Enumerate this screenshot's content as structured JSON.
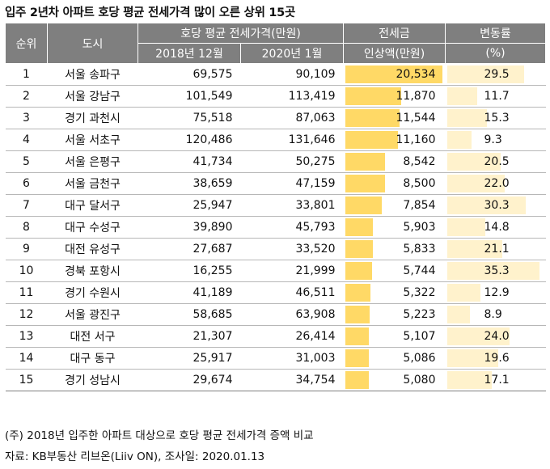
{
  "title": "입주 2년차 아파트 호당 평균 전세가격 많이 오른 상위 15곳",
  "headers": {
    "rank": "순위",
    "city": "도시",
    "avg_price": "호당 평균 전세가격(만원)",
    "dec2018": "2018년 12월",
    "jan2020": "2020년 1월",
    "increase_top": "전세금",
    "increase_bottom": "인상액(만원)",
    "change_top": "변동률",
    "change_bottom": "(%)"
  },
  "colors": {
    "increase_bar": "#ffd966",
    "change_bar": "#fff2cc",
    "header_bg": "#7f7f7f"
  },
  "increase_max": 20534,
  "change_max": 35.3,
  "rows": [
    {
      "rank": "1",
      "city": "서울 송파구",
      "p2018": "69,575",
      "p2020": "90,109",
      "increase": "20,534",
      "increase_value": 20534,
      "change": "29.5",
      "change_value": 29.5
    },
    {
      "rank": "2",
      "city": "서울 강남구",
      "p2018": "101,549",
      "p2020": "113,419",
      "increase": "11,870",
      "increase_value": 11870,
      "change": "11.7",
      "change_value": 11.7
    },
    {
      "rank": "3",
      "city": "경기 과천시",
      "p2018": "75,518",
      "p2020": "87,063",
      "increase": "11,544",
      "increase_value": 11544,
      "change": "15.3",
      "change_value": 15.3
    },
    {
      "rank": "4",
      "city": "서울 서초구",
      "p2018": "120,486",
      "p2020": "131,646",
      "increase": "11,160",
      "increase_value": 11160,
      "change": "9.3",
      "change_value": 9.3
    },
    {
      "rank": "5",
      "city": "서울 은평구",
      "p2018": "41,734",
      "p2020": "50,275",
      "increase": "8,542",
      "increase_value": 8542,
      "change": "20.5",
      "change_value": 20.5
    },
    {
      "rank": "6",
      "city": "서울 금천구",
      "p2018": "38,659",
      "p2020": "47,159",
      "increase": "8,500",
      "increase_value": 8500,
      "change": "22.0",
      "change_value": 22.0
    },
    {
      "rank": "7",
      "city": "대구 달서구",
      "p2018": "25,947",
      "p2020": "33,801",
      "increase": "7,854",
      "increase_value": 7854,
      "change": "30.3",
      "change_value": 30.3
    },
    {
      "rank": "8",
      "city": "대구 수성구",
      "p2018": "39,890",
      "p2020": "45,793",
      "increase": "5,903",
      "increase_value": 5903,
      "change": "14.8",
      "change_value": 14.8
    },
    {
      "rank": "9",
      "city": "대전 유성구",
      "p2018": "27,687",
      "p2020": "33,520",
      "increase": "5,833",
      "increase_value": 5833,
      "change": "21.1",
      "change_value": 21.1
    },
    {
      "rank": "10",
      "city": "경북 포항시",
      "p2018": "16,255",
      "p2020": "21,999",
      "increase": "5,744",
      "increase_value": 5744,
      "change": "35.3",
      "change_value": 35.3
    },
    {
      "rank": "11",
      "city": "경기 수원시",
      "p2018": "41,189",
      "p2020": "46,511",
      "increase": "5,322",
      "increase_value": 5322,
      "change": "12.9",
      "change_value": 12.9
    },
    {
      "rank": "12",
      "city": "서울 광진구",
      "p2018": "58,685",
      "p2020": "63,908",
      "increase": "5,223",
      "increase_value": 5223,
      "change": "8.9",
      "change_value": 8.9
    },
    {
      "rank": "13",
      "city": "대전 서구",
      "p2018": "21,307",
      "p2020": "26,414",
      "increase": "5,107",
      "increase_value": 5107,
      "change": "24.0",
      "change_value": 24.0
    },
    {
      "rank": "14",
      "city": "대구 동구",
      "p2018": "25,917",
      "p2020": "31,003",
      "increase": "5,086",
      "increase_value": 5086,
      "change": "19.6",
      "change_value": 19.6
    },
    {
      "rank": "15",
      "city": "경기 성남시",
      "p2018": "29,674",
      "p2020": "34,754",
      "increase": "5,080",
      "increase_value": 5080,
      "change": "17.1",
      "change_value": 17.1
    }
  ],
  "notes": {
    "note1": "(주) 2018년 입주한 아파트 대상으로 호당 평균 전세가격 증액 비교",
    "note2": "자료: KB부동산 리브온(Liiv ON), 조사일: 2020.01.13"
  }
}
